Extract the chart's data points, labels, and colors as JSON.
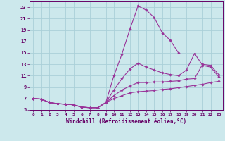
{
  "bg_color": "#cce8ec",
  "grid_color": "#aad0d8",
  "line_color": "#993399",
  "marker_color": "#993399",
  "xlabel": "Windchill (Refroidissement éolien,°C)",
  "xlabel_color": "#660066",
  "tick_color": "#660066",
  "xlim": [
    -0.5,
    23.5
  ],
  "ylim": [
    5,
    24
  ],
  "xticks": [
    0,
    1,
    2,
    3,
    4,
    5,
    6,
    7,
    8,
    9,
    10,
    11,
    12,
    13,
    14,
    15,
    16,
    17,
    18,
    19,
    20,
    21,
    22,
    23
  ],
  "yticks": [
    5,
    7,
    9,
    11,
    13,
    15,
    17,
    19,
    21,
    23
  ],
  "lines": [
    {
      "x": [
        0,
        1,
        2,
        3,
        4,
        5,
        6,
        7,
        8,
        9,
        10,
        11,
        12,
        13,
        14,
        15,
        16,
        17,
        18,
        19,
        20,
        21,
        22,
        23
      ],
      "y": [
        7.0,
        6.9,
        6.3,
        6.1,
        6.0,
        5.9,
        5.5,
        5.4,
        5.4,
        6.3,
        11.0,
        14.8,
        19.2,
        23.2,
        22.5,
        21.2,
        18.5,
        17.2,
        15.0,
        null,
        null,
        null,
        null,
        null
      ]
    },
    {
      "x": [
        0,
        1,
        2,
        3,
        4,
        5,
        6,
        7,
        8,
        9,
        10,
        11,
        12,
        13,
        14,
        15,
        16,
        17,
        18,
        19,
        20,
        21,
        22,
        23
      ],
      "y": [
        7.0,
        6.9,
        6.3,
        6.1,
        6.0,
        5.9,
        5.5,
        5.4,
        5.4,
        6.3,
        8.5,
        10.5,
        12.2,
        13.2,
        12.5,
        12.0,
        11.5,
        11.2,
        11.0,
        12.0,
        14.9,
        12.8,
        12.5,
        10.8
      ]
    },
    {
      "x": [
        0,
        1,
        2,
        3,
        4,
        5,
        6,
        7,
        8,
        9,
        10,
        11,
        12,
        13,
        14,
        15,
        16,
        17,
        18,
        19,
        20,
        21,
        22,
        23
      ],
      "y": [
        7.0,
        6.9,
        6.3,
        6.1,
        6.0,
        5.9,
        5.5,
        5.4,
        5.4,
        6.3,
        7.5,
        8.5,
        9.2,
        9.8,
        9.8,
        9.9,
        9.9,
        10.0,
        10.1,
        10.4,
        10.5,
        13.0,
        12.8,
        11.2
      ]
    },
    {
      "x": [
        0,
        1,
        2,
        3,
        4,
        5,
        6,
        7,
        8,
        9,
        10,
        11,
        12,
        13,
        14,
        15,
        16,
        17,
        18,
        19,
        20,
        21,
        22,
        23
      ],
      "y": [
        7.0,
        6.9,
        6.3,
        6.1,
        6.0,
        5.9,
        5.5,
        5.4,
        5.4,
        6.3,
        7.0,
        7.5,
        8.0,
        8.2,
        8.3,
        8.4,
        8.6,
        8.7,
        8.9,
        9.1,
        9.3,
        9.5,
        9.8,
        10.0
      ]
    }
  ]
}
